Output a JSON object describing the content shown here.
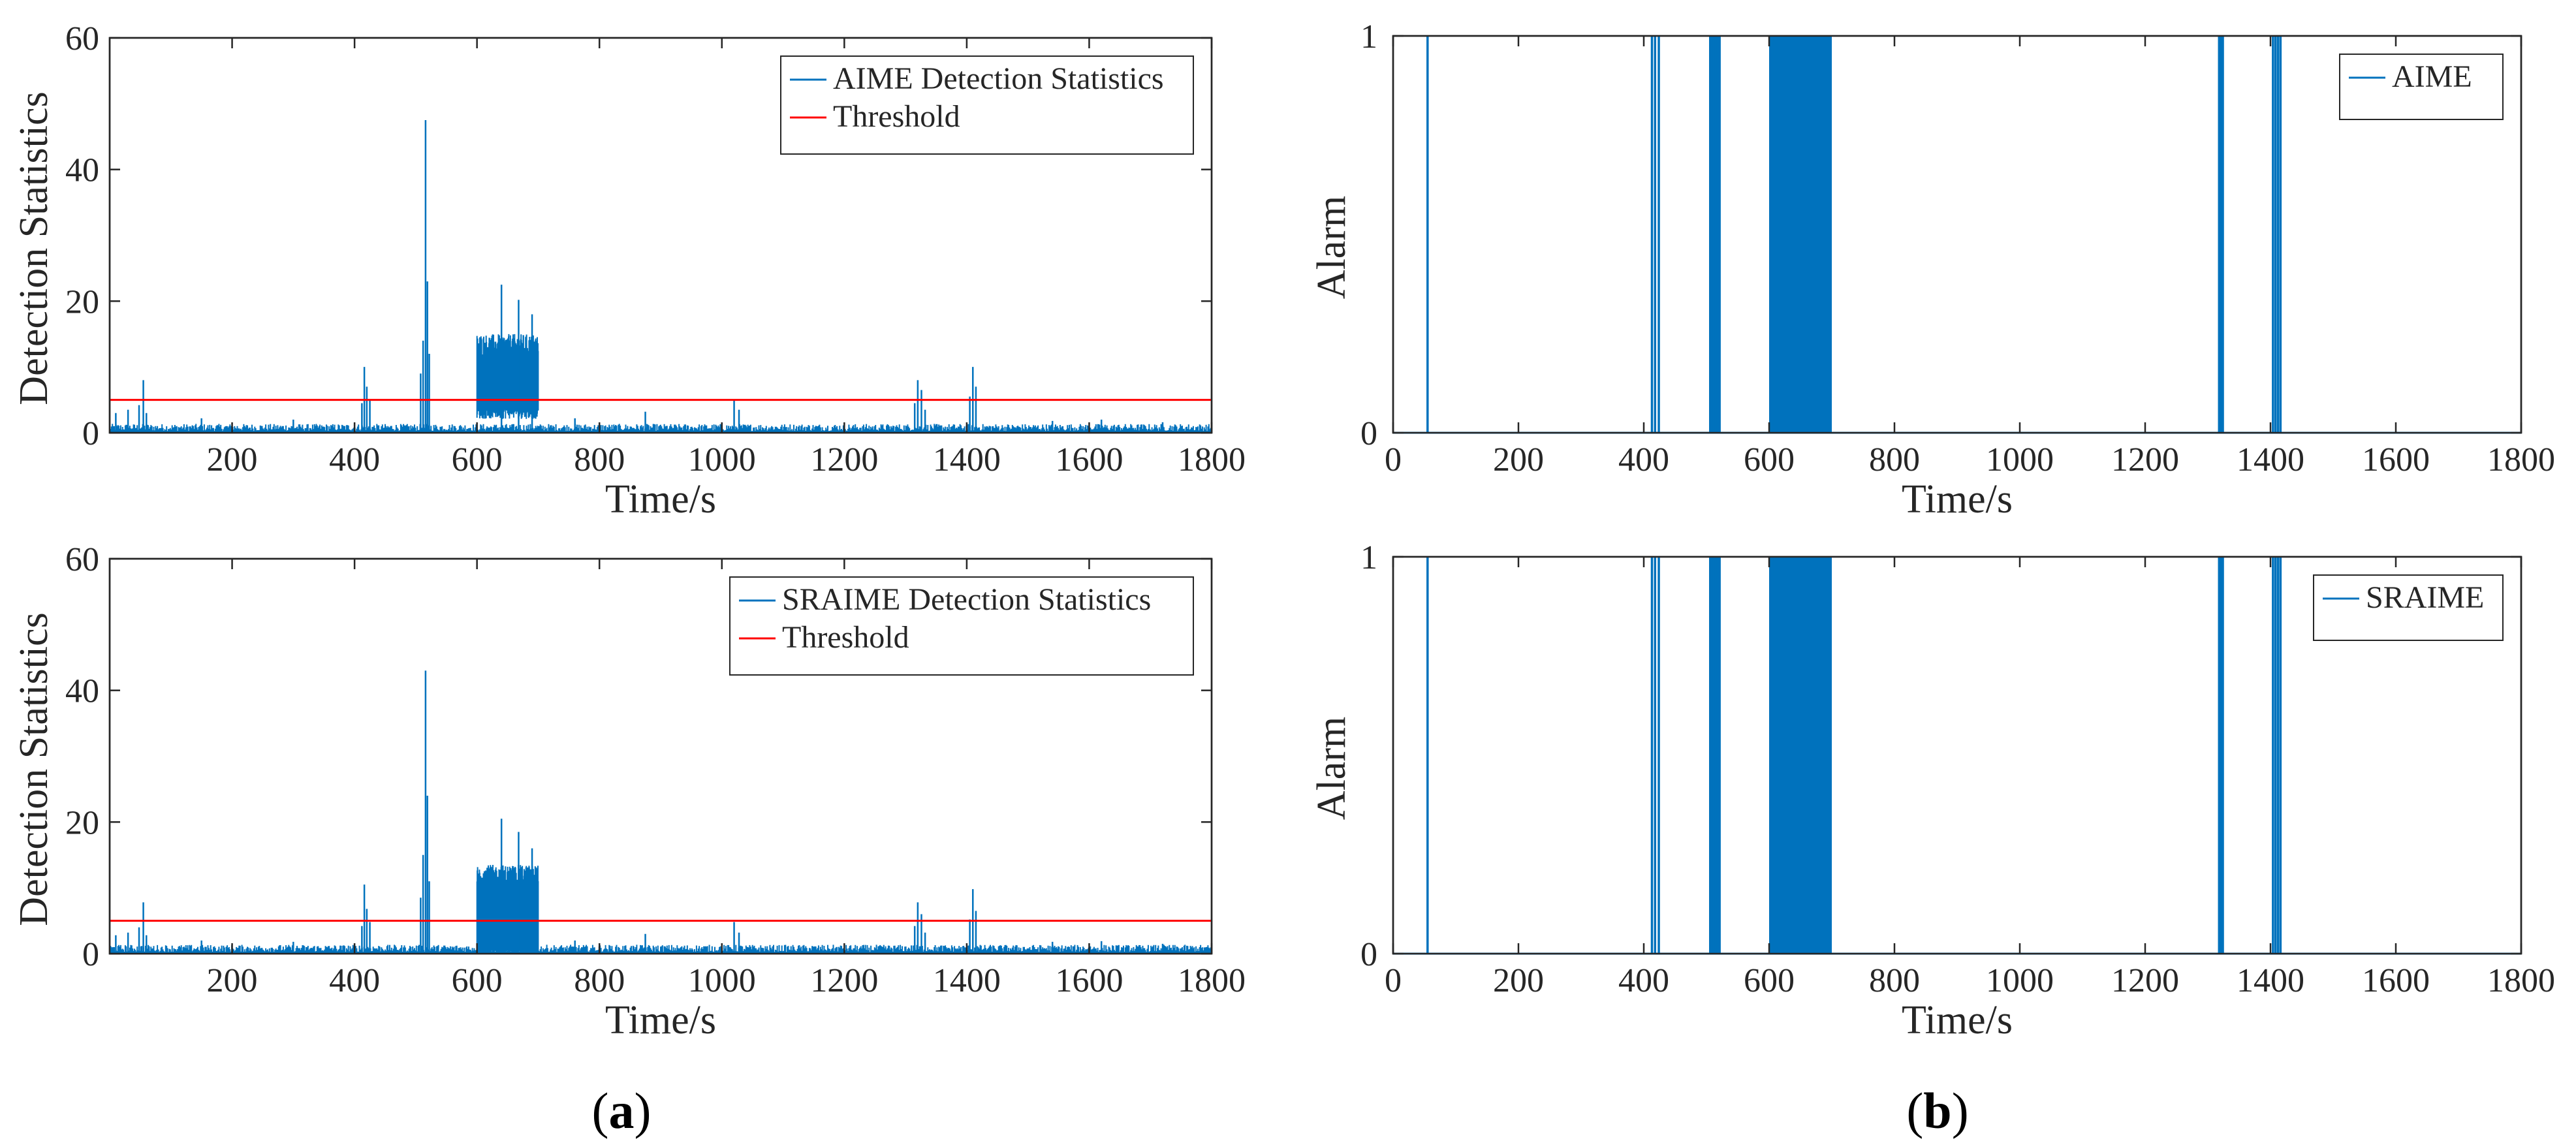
{
  "chart_data": [
    {
      "id": "a-top",
      "type": "line",
      "xlabel": "Time/s",
      "ylabel": "Detection Statistics",
      "xlim": [
        0,
        1800
      ],
      "ylim": [
        0,
        60
      ],
      "xticks": [
        200,
        400,
        600,
        800,
        1000,
        1200,
        1400,
        1600,
        1800
      ],
      "yticks": [
        0,
        20,
        40,
        60
      ],
      "legend_position": "top-right",
      "series": [
        {
          "name": "AIME Detection Statistics",
          "color": "#0072BD",
          "baseline_level": 0.9,
          "spikes": [
            {
              "x": 10,
              "y": 3.0
            },
            {
              "x": 30,
              "y": 3.5
            },
            {
              "x": 48,
              "y": 4.2
            },
            {
              "x": 55,
              "y": 8.0
            },
            {
              "x": 60,
              "y": 3.0
            },
            {
              "x": 150,
              "y": 2.2
            },
            {
              "x": 300,
              "y": 2.0
            },
            {
              "x": 412,
              "y": 4.5
            },
            {
              "x": 416,
              "y": 10.0
            },
            {
              "x": 420,
              "y": 7.0
            },
            {
              "x": 425,
              "y": 5.0
            },
            {
              "x": 508,
              "y": 9.0
            },
            {
              "x": 512,
              "y": 14.0
            },
            {
              "x": 516,
              "y": 47.5
            },
            {
              "x": 519,
              "y": 23.0
            },
            {
              "x": 522,
              "y": 12.0
            },
            {
              "x": 640,
              "y": 22.5
            },
            {
              "x": 668,
              "y": 20.2
            },
            {
              "x": 690,
              "y": 18.0
            },
            {
              "x": 760,
              "y": 2.2
            },
            {
              "x": 875,
              "y": 3.2
            },
            {
              "x": 1020,
              "y": 5.0
            },
            {
              "x": 1028,
              "y": 3.5
            },
            {
              "x": 1315,
              "y": 4.5
            },
            {
              "x": 1320,
              "y": 8.0
            },
            {
              "x": 1326,
              "y": 6.5
            },
            {
              "x": 1332,
              "y": 3.5
            },
            {
              "x": 1405,
              "y": 5.5
            },
            {
              "x": 1410,
              "y": 10.0
            },
            {
              "x": 1415,
              "y": 7.0
            },
            {
              "x": 1540,
              "y": 1.8
            },
            {
              "x": 1620,
              "y": 2.0
            },
            {
              "x": 1720,
              "y": 1.6
            }
          ],
          "dense_block": {
            "x_start": 600,
            "x_end": 700,
            "low": 3.5,
            "high": 15.0
          }
        },
        {
          "name": "Threshold",
          "color": "#FF0000",
          "value": 5
        }
      ]
    },
    {
      "id": "a-bottom",
      "type": "line",
      "xlabel": "Time/s",
      "ylabel": "Detection Statistics",
      "xlim": [
        0,
        1800
      ],
      "ylim": [
        0,
        60
      ],
      "xticks": [
        200,
        400,
        600,
        800,
        1000,
        1200,
        1400,
        1600,
        1800
      ],
      "yticks": [
        0,
        20,
        40,
        60
      ],
      "legend_position": "top-right",
      "series": [
        {
          "name": "SRAIME Detection Statistics",
          "color": "#0072BD",
          "baseline_level": 0.9,
          "spikes": [
            {
              "x": 10,
              "y": 2.8
            },
            {
              "x": 30,
              "y": 3.2
            },
            {
              "x": 48,
              "y": 4.0
            },
            {
              "x": 55,
              "y": 7.8
            },
            {
              "x": 60,
              "y": 2.8
            },
            {
              "x": 150,
              "y": 2.0
            },
            {
              "x": 300,
              "y": 1.8
            },
            {
              "x": 412,
              "y": 4.2
            },
            {
              "x": 416,
              "y": 10.5
            },
            {
              "x": 420,
              "y": 6.8
            },
            {
              "x": 425,
              "y": 4.8
            },
            {
              "x": 508,
              "y": 8.5
            },
            {
              "x": 512,
              "y": 15.0
            },
            {
              "x": 516,
              "y": 43.0
            },
            {
              "x": 519,
              "y": 24.0
            },
            {
              "x": 522,
              "y": 11.0
            },
            {
              "x": 640,
              "y": 20.5
            },
            {
              "x": 668,
              "y": 18.5
            },
            {
              "x": 690,
              "y": 16.0
            },
            {
              "x": 760,
              "y": 2.0
            },
            {
              "x": 875,
              "y": 3.0
            },
            {
              "x": 1020,
              "y": 4.8
            },
            {
              "x": 1028,
              "y": 3.2
            },
            {
              "x": 1315,
              "y": 4.2
            },
            {
              "x": 1320,
              "y": 7.8
            },
            {
              "x": 1326,
              "y": 6.0
            },
            {
              "x": 1332,
              "y": 3.2
            },
            {
              "x": 1405,
              "y": 5.2
            },
            {
              "x": 1410,
              "y": 9.8
            },
            {
              "x": 1415,
              "y": 6.5
            },
            {
              "x": 1540,
              "y": 1.8
            },
            {
              "x": 1620,
              "y": 1.9
            },
            {
              "x": 1720,
              "y": 1.5
            }
          ],
          "dense_block": {
            "x_start": 600,
            "x_end": 700,
            "low": 0.5,
            "high": 13.5
          }
        },
        {
          "name": "Threshold",
          "color": "#FF0000",
          "value": 5
        }
      ]
    },
    {
      "id": "b-top",
      "type": "line",
      "xlabel": "Time/s",
      "ylabel": "Alarm",
      "xlim": [
        0,
        1800
      ],
      "ylim": [
        0,
        1
      ],
      "xticks": [
        0,
        200,
        400,
        600,
        800,
        1000,
        1200,
        1400,
        1600,
        1800
      ],
      "yticks": [
        0,
        1
      ],
      "legend_position": "top-right",
      "series": [
        {
          "name": "AIME",
          "color": "#0072BD",
          "alarm_lines": [
            55,
            413,
            418,
            424,
            506,
            509,
            512,
            515,
            518,
            521,
            1318,
            1321,
            1324,
            1404,
            1408,
            1412,
            1416
          ],
          "dense_block": {
            "x_start": 600,
            "x_end": 700
          }
        }
      ]
    },
    {
      "id": "b-bottom",
      "type": "line",
      "xlabel": "Time/s",
      "ylabel": "Alarm",
      "xlim": [
        0,
        1800
      ],
      "ylim": [
        0,
        1
      ],
      "xticks": [
        0,
        200,
        400,
        600,
        800,
        1000,
        1200,
        1400,
        1600,
        1800
      ],
      "yticks": [
        0,
        1
      ],
      "legend_position": "top-right",
      "series": [
        {
          "name": "SRAIME",
          "color": "#0072BD",
          "alarm_lines": [
            55,
            413,
            418,
            424,
            506,
            509,
            512,
            515,
            518,
            521,
            1318,
            1321,
            1324,
            1404,
            1408,
            1412,
            1416
          ],
          "dense_block": {
            "x_start": 600,
            "x_end": 700
          }
        }
      ]
    }
  ],
  "captions": {
    "a_prefix": "(",
    "a_letter": "a",
    "a_suffix": ")",
    "b_prefix": "(",
    "b_letter": "b",
    "b_suffix": ")"
  }
}
